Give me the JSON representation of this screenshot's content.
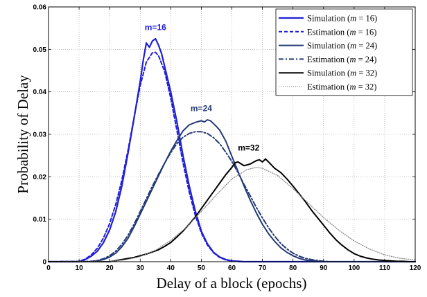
{
  "chart_data": {
    "type": "line",
    "title": "",
    "xlabel": "Delay of a block (epochs)",
    "ylabel": "Probability of Delay",
    "xlim": [
      0,
      120
    ],
    "ylim": [
      0,
      0.06
    ],
    "xticks": [
      "0",
      "10",
      "20",
      "30",
      "40",
      "50",
      "60",
      "70",
      "80",
      "90",
      "100",
      "110",
      "120"
    ],
    "yticks": [
      "0",
      "0.01",
      "0.02",
      "0.03",
      "0.04",
      "0.05",
      "0.06"
    ],
    "grid": true,
    "legend_position": "top-right",
    "annotations": [
      {
        "text": "m=16",
        "x": 35,
        "y": 0.0545,
        "color": "#1f1fd6"
      },
      {
        "text": "m=24",
        "x": 50,
        "y": 0.0355,
        "color": "#233a77"
      },
      {
        "text": "m=32",
        "x": 65.5,
        "y": 0.0262,
        "color": "#000000"
      }
    ],
    "series": [
      {
        "name": "Simulation (m = 16)",
        "legend_prefix": "Simulation (",
        "legend_var": "m",
        "legend_suffix": " = 16)",
        "color": "#1f1fd6",
        "dash": "solid",
        "width": 2.2,
        "x": [
          0,
          10,
          12,
          14,
          16,
          18,
          20,
          22,
          24,
          26,
          28,
          30,
          31,
          32,
          33,
          34,
          35,
          36,
          37,
          38,
          40,
          42,
          44,
          46,
          48,
          50,
          52,
          54,
          56,
          58,
          60,
          62,
          64,
          120
        ],
        "y": [
          0,
          0,
          0.0005,
          0.0013,
          0.0025,
          0.0045,
          0.0075,
          0.0118,
          0.0178,
          0.0255,
          0.0338,
          0.0425,
          0.0475,
          0.0515,
          0.0505,
          0.052,
          0.0525,
          0.051,
          0.049,
          0.046,
          0.04,
          0.033,
          0.025,
          0.018,
          0.012,
          0.0072,
          0.0042,
          0.0022,
          0.0011,
          0.0005,
          0.0002,
          0.0001,
          0,
          0
        ]
      },
      {
        "name": "Estimation (m = 16)",
        "legend_prefix": "Estimation (",
        "legend_var": "m",
        "legend_suffix": " = 16)",
        "color": "#1f1fd6",
        "dash": "5,3",
        "width": 2.0,
        "x": [
          0,
          10,
          12,
          14,
          16,
          18,
          20,
          22,
          24,
          26,
          28,
          30,
          32,
          34,
          35,
          36,
          38,
          40,
          42,
          44,
          46,
          48,
          50,
          52,
          54,
          56,
          58,
          60,
          62,
          120
        ],
        "y": [
          0,
          0.0001,
          0.0006,
          0.0016,
          0.0032,
          0.0056,
          0.009,
          0.0135,
          0.0192,
          0.0262,
          0.034,
          0.0415,
          0.047,
          0.0492,
          0.0493,
          0.0485,
          0.0448,
          0.0385,
          0.031,
          0.0233,
          0.0165,
          0.011,
          0.0068,
          0.0039,
          0.0021,
          0.001,
          0.0004,
          0.0002,
          0,
          0
        ]
      },
      {
        "name": "Simulation (m = 24)",
        "legend_prefix": "Simulation (",
        "legend_var": "m",
        "legend_suffix": " = 24)",
        "color": "#233a77",
        "dash": "solid",
        "width": 2.0,
        "x": [
          0,
          14,
          16,
          18,
          20,
          22,
          24,
          26,
          28,
          30,
          32,
          34,
          36,
          38,
          40,
          42,
          44,
          46,
          48,
          50,
          51,
          52,
          53,
          54,
          55,
          56,
          58,
          60,
          62,
          64,
          66,
          68,
          70,
          72,
          74,
          76,
          78,
          80,
          82,
          84,
          86,
          88,
          90,
          120
        ],
        "y": [
          0,
          0,
          0.0002,
          0.0005,
          0.0011,
          0.002,
          0.0035,
          0.0055,
          0.0082,
          0.0112,
          0.0142,
          0.0172,
          0.0202,
          0.0232,
          0.026,
          0.0285,
          0.0308,
          0.0322,
          0.0328,
          0.0332,
          0.0329,
          0.0334,
          0.0332,
          0.0325,
          0.0318,
          0.031,
          0.0284,
          0.0248,
          0.0213,
          0.0178,
          0.0145,
          0.0115,
          0.0088,
          0.0066,
          0.0048,
          0.0033,
          0.0022,
          0.0014,
          0.0008,
          0.0004,
          0.0002,
          0.0001,
          0,
          0
        ]
      },
      {
        "name": "Estimation (m = 24)",
        "legend_prefix": "Estimation (",
        "legend_var": "m",
        "legend_suffix": " = 24)",
        "color": "#233a77",
        "dash": "7,3,2,3",
        "width": 2.0,
        "x": [
          0,
          14,
          16,
          18,
          20,
          22,
          24,
          26,
          28,
          30,
          32,
          34,
          36,
          38,
          40,
          42,
          44,
          46,
          48,
          50,
          52,
          54,
          56,
          58,
          60,
          62,
          64,
          66,
          68,
          70,
          72,
          74,
          76,
          78,
          80,
          82,
          84,
          86,
          88,
          90,
          92,
          120
        ],
        "y": [
          0,
          0.0001,
          0.0003,
          0.0007,
          0.0014,
          0.0025,
          0.0041,
          0.0062,
          0.0088,
          0.0118,
          0.0148,
          0.0178,
          0.0206,
          0.0232,
          0.0257,
          0.0278,
          0.0293,
          0.0302,
          0.0306,
          0.0306,
          0.0302,
          0.0292,
          0.0278,
          0.0258,
          0.0236,
          0.021,
          0.0182,
          0.0155,
          0.0128,
          0.0103,
          0.008,
          0.006,
          0.0043,
          0.003,
          0.002,
          0.0013,
          0.0008,
          0.0005,
          0.0003,
          0.0001,
          0,
          0
        ]
      },
      {
        "name": "Simulation (m = 32)",
        "legend_prefix": "Simulation (",
        "legend_var": "m",
        "legend_suffix": " = 32)",
        "color": "#000000",
        "dash": "solid",
        "width": 2.0,
        "x": [
          0,
          20,
          24,
          28,
          32,
          36,
          38,
          40,
          42,
          44,
          46,
          48,
          50,
          52,
          54,
          56,
          58,
          60,
          61,
          62,
          64,
          66,
          68,
          69,
          70,
          71,
          72,
          74,
          76,
          78,
          80,
          82,
          84,
          86,
          88,
          90,
          92,
          94,
          96,
          98,
          100,
          102,
          104,
          106,
          108,
          110,
          112,
          114,
          116,
          118,
          120
        ],
        "y": [
          0,
          0,
          0.0005,
          0.001,
          0.0018,
          0.0028,
          0.0036,
          0.0045,
          0.0058,
          0.0072,
          0.0088,
          0.0105,
          0.0125,
          0.0145,
          0.0165,
          0.0185,
          0.0205,
          0.0222,
          0.0233,
          0.0235,
          0.0226,
          0.023,
          0.0238,
          0.024,
          0.0235,
          0.0242,
          0.0235,
          0.022,
          0.021,
          0.0195,
          0.0178,
          0.016,
          0.0142,
          0.0122,
          0.0104,
          0.0086,
          0.0068,
          0.0052,
          0.0039,
          0.0028,
          0.0019,
          0.0013,
          0.0009,
          0.0006,
          0.0004,
          0.0003,
          0.0002,
          0.0001,
          0.0001,
          0,
          0
        ]
      },
      {
        "name": "Estimation (m = 32)",
        "legend_prefix": "Estimation (",
        "legend_var": "m",
        "legend_suffix": " = 32)",
        "color": "#888888",
        "dash": "1,2",
        "width": 1.3,
        "x": [
          0,
          20,
          25,
          30,
          35,
          40,
          45,
          50,
          55,
          60,
          65,
          68,
          70,
          75,
          80,
          85,
          90,
          95,
          100,
          105,
          110,
          115,
          120
        ],
        "y": [
          0,
          0.0001,
          0.0004,
          0.0012,
          0.0027,
          0.005,
          0.008,
          0.0118,
          0.0158,
          0.0195,
          0.0217,
          0.0222,
          0.022,
          0.0203,
          0.0172,
          0.0138,
          0.0104,
          0.0074,
          0.0049,
          0.003,
          0.0016,
          0.0008,
          0.0004
        ]
      }
    ]
  }
}
